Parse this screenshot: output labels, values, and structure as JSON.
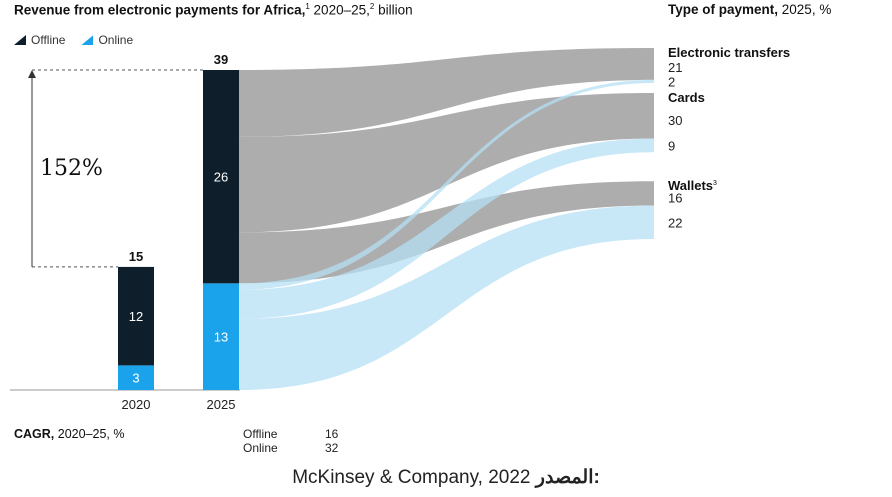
{
  "header": {
    "left_title_bold": "Revenue from electronic payments for Africa,",
    "left_title_sup": "1",
    "left_title_rest": " 2020–25,",
    "left_title_sup2": "2",
    "left_title_rest2": " billion",
    "right_title_bold": "Type of payment,",
    "right_title_rest": " 2025, %"
  },
  "legend": [
    {
      "label": "Offline",
      "color": "#0e1e2b",
      "icon": "offline-swatch-icon"
    },
    {
      "label": "Online",
      "color": "#1aa3ea",
      "icon": "online-swatch-icon"
    }
  ],
  "growth_label": "152%",
  "chart_data": {
    "type": "bar",
    "title": "Revenue from electronic payments for Africa, 2020–25, billion",
    "categories": [
      "2020",
      "2025"
    ],
    "stacked": true,
    "series": [
      {
        "name": "Offline",
        "values": [
          12,
          26
        ],
        "color": "#0e1e2b"
      },
      {
        "name": "Online",
        "values": [
          3,
          13
        ],
        "color": "#1aa3ea"
      }
    ],
    "totals": [
      15,
      39
    ],
    "growth_percent": 152,
    "sankey": {
      "title": "Type of payment, 2025, %",
      "groups": [
        {
          "name": "Electronic transfers",
          "sup": "",
          "values": [
            21,
            2
          ]
        },
        {
          "name": "Cards",
          "sup": "",
          "values": [
            30,
            9
          ]
        },
        {
          "name": "Wallets",
          "sup": "3",
          "values": [
            16,
            22
          ]
        }
      ],
      "value_labels": [
        "21",
        "2",
        "30",
        "9",
        "16",
        "22"
      ],
      "flow_colors": {
        "offline": "#a9a9a9",
        "online": "#b5e0f6"
      }
    }
  },
  "cagr": {
    "label_bold": "CAGR,",
    "label_rest": " 2020–25, %",
    "rows": [
      {
        "name": "Offline",
        "value": "16"
      },
      {
        "name": "Online",
        "value": "32"
      }
    ]
  },
  "source": {
    "arabic": "المصدر:",
    "text": "McKinsey & Company, 2022"
  }
}
